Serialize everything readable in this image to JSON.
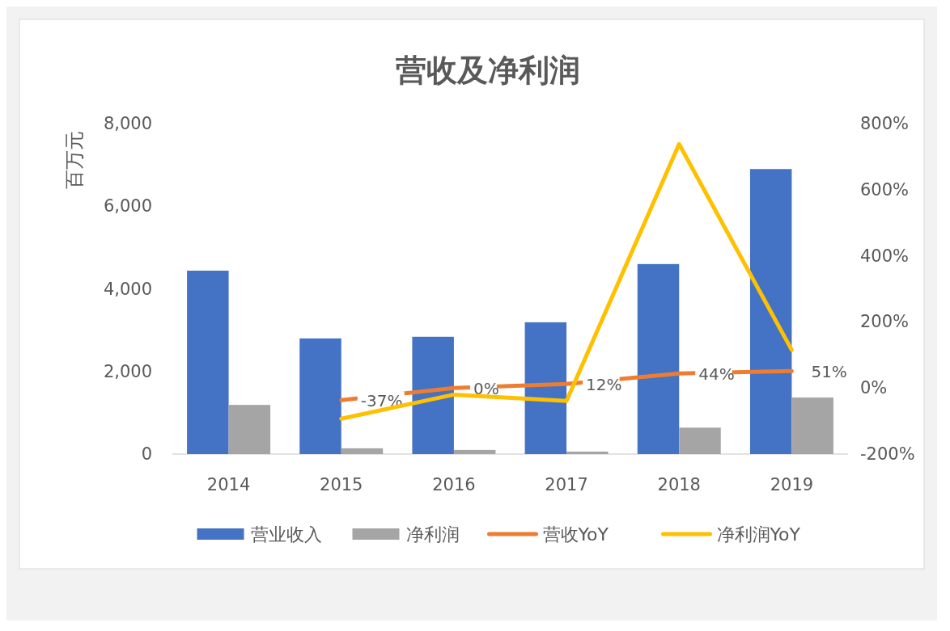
{
  "chart_data": {
    "type": "bar",
    "title": "营收及净利润",
    "ylabel": "百万元",
    "categories": [
      "2014",
      "2015",
      "2016",
      "2017",
      "2018",
      "2019"
    ],
    "series": [
      {
        "name": "营业收入",
        "color": "#4472c4",
        "values": [
          4440,
          2800,
          2840,
          3190,
          4600,
          6900
        ]
      },
      {
        "name": "净利润",
        "color": "#a5a5a5",
        "values": [
          1190,
          140,
          100,
          60,
          640,
          1370
        ]
      },
      {
        "name": "营收YoY",
        "type": "line",
        "axis": "y2",
        "color": "#ed7d31",
        "values": [
          null,
          -37,
          0,
          12,
          44,
          51
        ],
        "value_labels": [
          null,
          "-37%",
          "0%",
          "12%",
          "44%",
          "51%"
        ]
      },
      {
        "name": "净利润YoY",
        "type": "line",
        "axis": "y2",
        "color": "#ffc000",
        "values": [
          null,
          -93,
          -20,
          -39,
          738,
          115
        ]
      }
    ],
    "ylim": [
      0,
      8000
    ],
    "yticks": [
      0,
      {
        "value": 2000,
        "label": "2,000"
      },
      {
        "value": 4000,
        "label": "4,000"
      },
      {
        "value": 6000,
        "label": "6,000"
      },
      {
        "value": 8000,
        "label": "8,000"
      }
    ],
    "y2lim": [
      -200,
      800
    ],
    "y2ticks": [
      {
        "value": -200,
        "label": "-200%"
      },
      {
        "value": 0,
        "label": "0%"
      },
      {
        "value": 200,
        "label": "200%"
      },
      {
        "value": 400,
        "label": "400%"
      },
      {
        "value": 600,
        "label": "600%"
      },
      {
        "value": 800,
        "label": "800%"
      }
    ],
    "grid": false,
    "legend": "bottom"
  }
}
